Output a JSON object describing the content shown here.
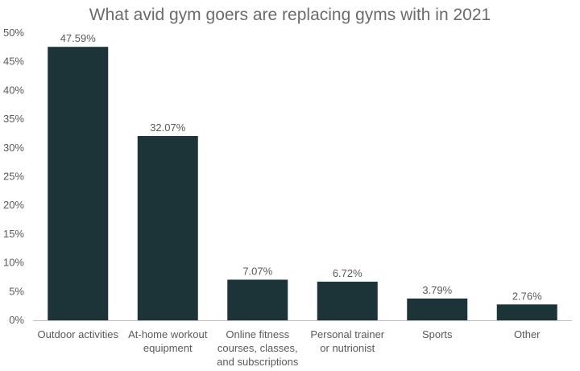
{
  "chart_data": {
    "type": "bar",
    "title": "What avid gym goers are replacing gyms with in 2021",
    "xlabel": "",
    "ylabel": "",
    "ylim": [
      0,
      50
    ],
    "yticks": [
      "0%",
      "5%",
      "10%",
      "15%",
      "20%",
      "25%",
      "30%",
      "35%",
      "40%",
      "45%",
      "50%"
    ],
    "categories": [
      [
        "Outdoor activities"
      ],
      [
        "At-home workout",
        "equipment"
      ],
      [
        "Online fitness",
        "courses, classes,",
        "and subscriptions"
      ],
      [
        "Personal trainer",
        "or nutrionist"
      ],
      [
        "Sports"
      ],
      [
        "Other"
      ]
    ],
    "values": [
      47.59,
      32.07,
      7.07,
      6.72,
      3.79,
      2.76
    ],
    "data_labels": [
      "47.59%",
      "32.07%",
      "7.07%",
      "6.72%",
      "3.79%",
      "2.76%"
    ],
    "bar_color": "#1c3338",
    "axis_color": "#bfbfbf",
    "grid": false,
    "legend": "none"
  }
}
